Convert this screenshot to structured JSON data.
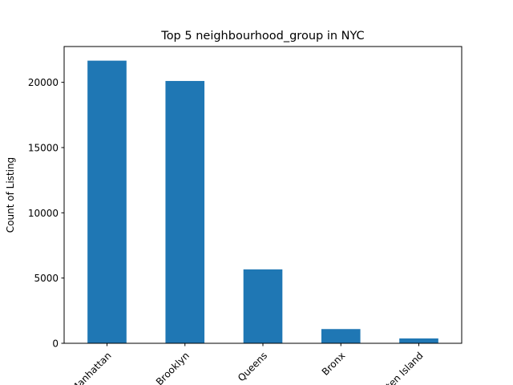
{
  "chart_data": {
    "type": "bar",
    "title": "Top 5 neighbourhood_group in NYC",
    "xlabel": "",
    "ylabel": "Count of Listing",
    "categories": [
      "Manhattan",
      "Brooklyn",
      "Queens",
      "Bronx",
      "Staten Island"
    ],
    "values": [
      21661,
      20104,
      5666,
      1091,
      373
    ],
    "ylim": [
      0,
      22744
    ],
    "yticks": [
      0,
      5000,
      10000,
      15000,
      20000
    ],
    "ytick_labels": [
      "0",
      "5000",
      "10000",
      "15000",
      "20000"
    ],
    "bar_color": "#1f77b4",
    "grid": false,
    "legend": "none"
  }
}
